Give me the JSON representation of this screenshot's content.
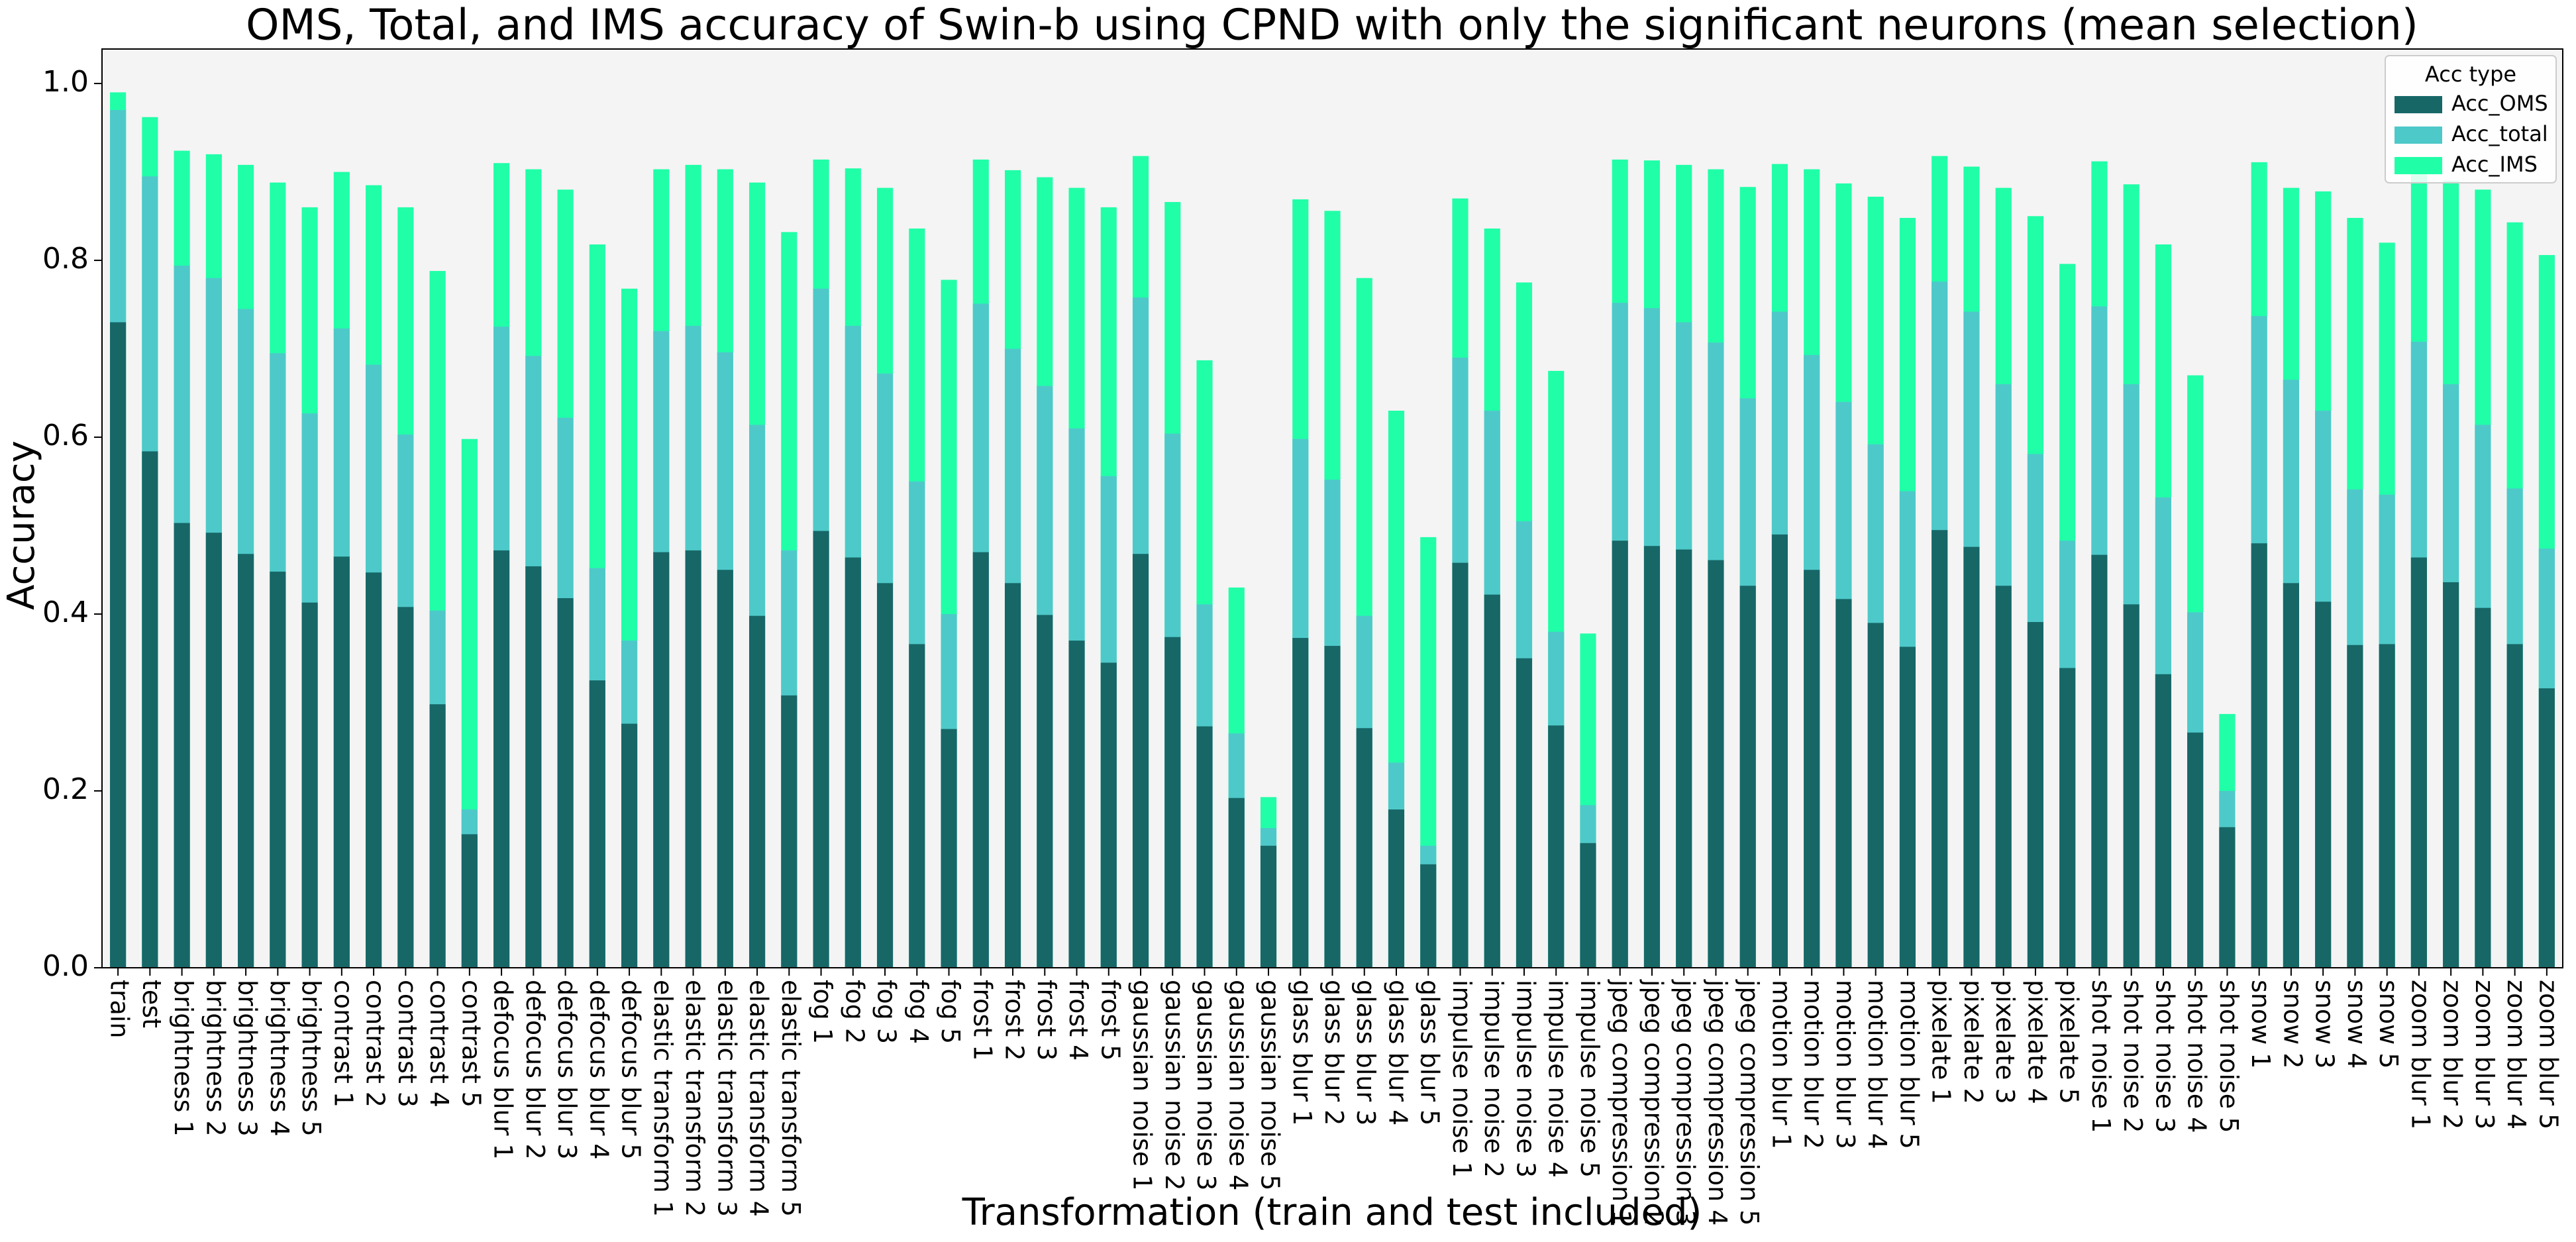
{
  "chart_data": {
    "type": "bar",
    "layered": true,
    "title": "OMS, Total,  and IMS accuracy of Swin-b using CPND with only the significant neurons (mean selection)",
    "xlabel": "Transformation (train and test included)",
    "ylabel": "Accuracy",
    "categories": [
      "train",
      "test",
      "brightness 1",
      "brightness 2",
      "brightness 3",
      "brightness 4",
      "brightness 5",
      "contrast 1",
      "contrast 2",
      "contrast 3",
      "contrast 4",
      "contrast 5",
      "defocus blur 1",
      "defocus blur 2",
      "defocus blur 3",
      "defocus blur 4",
      "defocus blur 5",
      "elastic transform 1",
      "elastic transform 2",
      "elastic transform 3",
      "elastic transform 4",
      "elastic transform 5",
      "fog 1",
      "fog 2",
      "fog 3",
      "fog 4",
      "fog 5",
      "frost 1",
      "frost 2",
      "frost 3",
      "frost 4",
      "frost 5",
      "gaussian noise 1",
      "gaussian noise 2",
      "gaussian noise 3",
      "gaussian noise 4",
      "gaussian noise 5",
      "glass blur 1",
      "glass blur 2",
      "glass blur 3",
      "glass blur 4",
      "glass blur 5",
      "impulse noise 1",
      "impulse noise 2",
      "impulse noise 3",
      "impulse noise 4",
      "impulse noise 5",
      "jpeg compression 1",
      "jpeg compression 2",
      "jpeg compression 3",
      "jpeg compression 4",
      "jpeg compression 5",
      "motion blur 1",
      "motion blur 2",
      "motion blur 3",
      "motion blur 4",
      "motion blur 5",
      "pixelate 1",
      "pixelate 2",
      "pixelate 3",
      "pixelate 4",
      "pixelate 5",
      "shot noise 1",
      "shot noise 2",
      "shot noise 3",
      "shot noise 4",
      "shot noise 5",
      "snow 1",
      "snow 2",
      "snow 3",
      "snow 4",
      "snow 5",
      "zoom blur 1",
      "zoom blur 2",
      "zoom blur 3",
      "zoom blur 4",
      "zoom blur 5"
    ],
    "series": [
      {
        "name": "Acc_OMS",
        "color": "#176767",
        "values": [
          0.73,
          0.584,
          0.503,
          0.492,
          0.468,
          0.448,
          0.413,
          0.465,
          0.447,
          0.408,
          0.298,
          0.151,
          0.472,
          0.454,
          0.418,
          0.325,
          0.276,
          0.47,
          0.472,
          0.45,
          0.398,
          0.308,
          0.494,
          0.464,
          0.435,
          0.366,
          0.27,
          0.47,
          0.435,
          0.399,
          0.37,
          0.345,
          0.468,
          0.374,
          0.273,
          0.192,
          0.138,
          0.373,
          0.364,
          0.271,
          0.179,
          0.117,
          0.458,
          0.422,
          0.35,
          0.274,
          0.141,
          0.483,
          0.477,
          0.473,
          0.461,
          0.432,
          0.49,
          0.45,
          0.417,
          0.39,
          0.363,
          0.495,
          0.476,
          0.432,
          0.391,
          0.339,
          0.467,
          0.411,
          0.332,
          0.266,
          0.159,
          0.48,
          0.435,
          0.414,
          0.365,
          0.366,
          0.464,
          0.436,
          0.407,
          0.366,
          0.316
        ]
      },
      {
        "name": "Acc_total",
        "color": "#4ec9c9",
        "values": [
          0.97,
          0.895,
          0.794,
          0.78,
          0.745,
          0.695,
          0.627,
          0.723,
          0.682,
          0.603,
          0.404,
          0.179,
          0.725,
          0.692,
          0.622,
          0.452,
          0.37,
          0.72,
          0.726,
          0.696,
          0.614,
          0.472,
          0.768,
          0.726,
          0.672,
          0.55,
          0.4,
          0.751,
          0.7,
          0.658,
          0.61,
          0.556,
          0.758,
          0.604,
          0.411,
          0.265,
          0.158,
          0.598,
          0.552,
          0.398,
          0.232,
          0.138,
          0.69,
          0.63,
          0.505,
          0.38,
          0.184,
          0.752,
          0.746,
          0.73,
          0.707,
          0.644,
          0.742,
          0.693,
          0.64,
          0.592,
          0.539,
          0.776,
          0.742,
          0.66,
          0.581,
          0.483,
          0.748,
          0.66,
          0.532,
          0.402,
          0.2,
          0.737,
          0.665,
          0.63,
          0.541,
          0.535,
          0.708,
          0.66,
          0.614,
          0.542,
          0.474
        ]
      },
      {
        "name": "Acc_IMS",
        "color": "#20ffa8",
        "values": [
          0.99,
          0.962,
          0.924,
          0.92,
          0.908,
          0.888,
          0.86,
          0.9,
          0.885,
          0.86,
          0.788,
          0.598,
          0.91,
          0.903,
          0.88,
          0.818,
          0.768,
          0.903,
          0.908,
          0.903,
          0.888,
          0.832,
          0.914,
          0.904,
          0.882,
          0.836,
          0.778,
          0.914,
          0.902,
          0.894,
          0.882,
          0.86,
          0.918,
          0.866,
          0.687,
          0.43,
          0.193,
          0.869,
          0.856,
          0.78,
          0.63,
          0.487,
          0.87,
          0.836,
          0.775,
          0.675,
          0.378,
          0.914,
          0.913,
          0.908,
          0.903,
          0.883,
          0.909,
          0.903,
          0.887,
          0.872,
          0.848,
          0.918,
          0.906,
          0.882,
          0.85,
          0.796,
          0.912,
          0.886,
          0.818,
          0.67,
          0.287,
          0.911,
          0.882,
          0.878,
          0.848,
          0.82,
          0.908,
          0.89,
          0.88,
          0.843,
          0.806
        ]
      }
    ],
    "ylim": [
      0,
      1.039
    ],
    "yticks": [
      {
        "value": 0,
        "label": "0.0"
      },
      0.2,
      0.4,
      0.6,
      0.8,
      {
        "value": 1,
        "label": "1.0"
      }
    ],
    "legend_title": "Acc type",
    "legend_loc": "upper right",
    "background": "#f4f4f4"
  }
}
